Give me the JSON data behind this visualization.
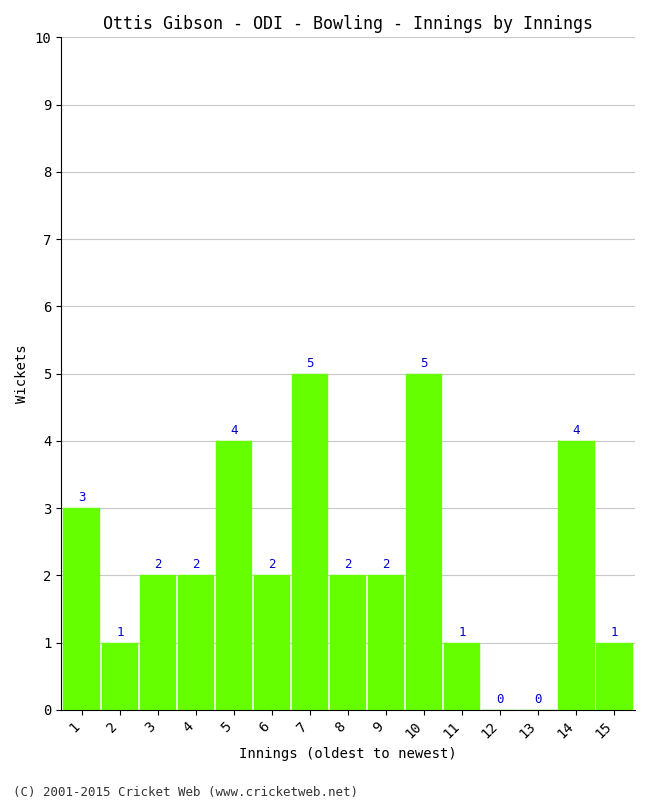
{
  "title": "Ottis Gibson - ODI - Bowling - Innings by Innings",
  "xlabel": "Innings (oldest to newest)",
  "ylabel": "Wickets",
  "categories": [
    1,
    2,
    3,
    4,
    5,
    6,
    7,
    8,
    9,
    10,
    11,
    12,
    13,
    14,
    15
  ],
  "values": [
    3,
    1,
    2,
    2,
    4,
    2,
    5,
    2,
    2,
    5,
    1,
    0,
    0,
    4,
    1
  ],
  "bar_color": "#66ff00",
  "bar_edge_color": "#66ff00",
  "label_color": "#0000cc",
  "background_color": "#ffffff",
  "ylim": [
    0,
    10
  ],
  "yticks": [
    0,
    1,
    2,
    3,
    4,
    5,
    6,
    7,
    8,
    9,
    10
  ],
  "grid_color": "#c8c8c8",
  "title_fontsize": 12,
  "label_fontsize": 10,
  "tick_fontsize": 10,
  "annotation_fontsize": 9,
  "footer": "(C) 2001-2015 Cricket Web (www.cricketweb.net)",
  "footer_fontsize": 9
}
